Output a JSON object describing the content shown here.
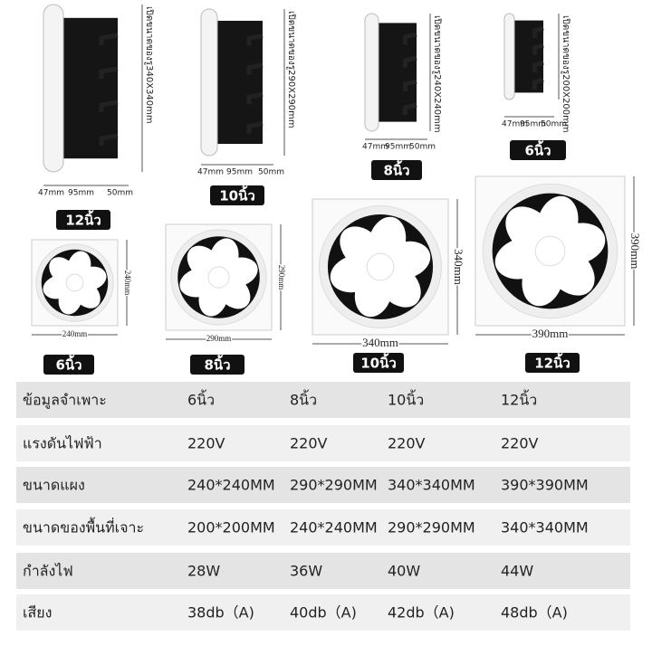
{
  "side_views": [
    {
      "size": "12นิ้ว",
      "hole": "เปิดขนาดของรู340X340mm",
      "dims": [
        "47mm",
        "95mm",
        "50mm"
      ]
    },
    {
      "size": "10นิ้ว",
      "hole": "เปิดขนาดของรู290X290mm",
      "dims": [
        "47mm",
        "95mm",
        "50mm"
      ]
    },
    {
      "size": "8นิ้ว",
      "hole": "เปิดขนาดของรู240X240mm",
      "dims": [
        "47mm",
        "95mm",
        "50mm"
      ]
    },
    {
      "size": "6นิ้ว",
      "hole": "เปิดขนาดของรู200X200mm",
      "dims": [
        "47mm",
        "95mm",
        "50mm"
      ]
    }
  ],
  "front_views": [
    {
      "size": "6นิ้ว",
      "width": "240mm",
      "height": "240mm"
    },
    {
      "size": "8นิ้ว",
      "width": "290mm",
      "height": "290mm"
    },
    {
      "size": "10นิ้ว",
      "width": "340mm",
      "height": "340mm"
    },
    {
      "size": "12นิ้ว",
      "width": "390mm",
      "height": "390mm"
    }
  ],
  "table": {
    "rows": [
      [
        "ข้อมูลจำเพาะ",
        "6นิ้ว",
        "8นิ้ว",
        "10นิ้ว",
        "12นิ้ว"
      ],
      [
        "แรงดันไฟฟ้า",
        "220V",
        "220V",
        "220V",
        "220V"
      ],
      [
        "ขนาดแผง",
        "240*240MM",
        "290*290MM",
        "340*340MM",
        "390*390MM"
      ],
      [
        "ขนาดของพื้นที่เจาะ",
        "200*200MM",
        "240*240MM",
        "290*290MM",
        "340*340MM"
      ],
      [
        "กำลังไฟ",
        "28W",
        "36W",
        "40W",
        "44W"
      ],
      [
        "เสียง",
        "38db（A)",
        "40db（A)",
        "42db（A)",
        "48db（A)"
      ]
    ]
  }
}
